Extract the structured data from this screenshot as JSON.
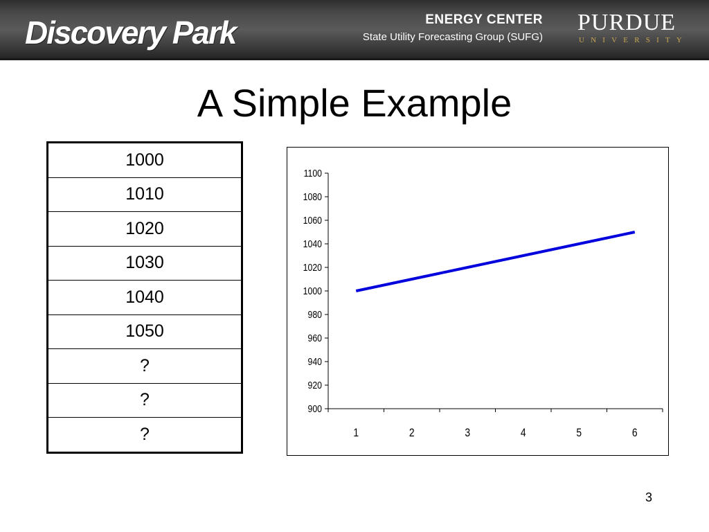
{
  "header": {
    "logo_left_text": "Discovery Park",
    "center_title": "ENERGY CENTER",
    "center_subtitle": "State Utility Forecasting Group (SUFG)",
    "logo_right_name": "PURDUE",
    "logo_right_subtitle": "UNIVERSITY",
    "colors": {
      "banner": "#4a4a4a",
      "gold": "#c8a552"
    }
  },
  "slide": {
    "title": "A Simple Example",
    "page_number": "3"
  },
  "table": {
    "values": [
      "1000",
      "1010",
      "1020",
      "1030",
      "1040",
      "1050",
      "?",
      "?",
      "?"
    ]
  },
  "chart_data": {
    "type": "line",
    "title": "",
    "xlabel": "",
    "ylabel": "",
    "x": [
      1,
      2,
      3,
      4,
      5,
      6
    ],
    "series": [
      {
        "values": [
          1000,
          1010,
          1020,
          1030,
          1040,
          1050
        ],
        "color": "#0000dd"
      }
    ],
    "ylim": [
      900,
      1100
    ],
    "yticks": [
      900,
      920,
      940,
      960,
      980,
      1000,
      1020,
      1040,
      1060,
      1080,
      1100
    ],
    "xticks": [
      "1",
      "2",
      "3",
      "4",
      "5",
      "6"
    ],
    "grid": false,
    "legend": "none"
  }
}
